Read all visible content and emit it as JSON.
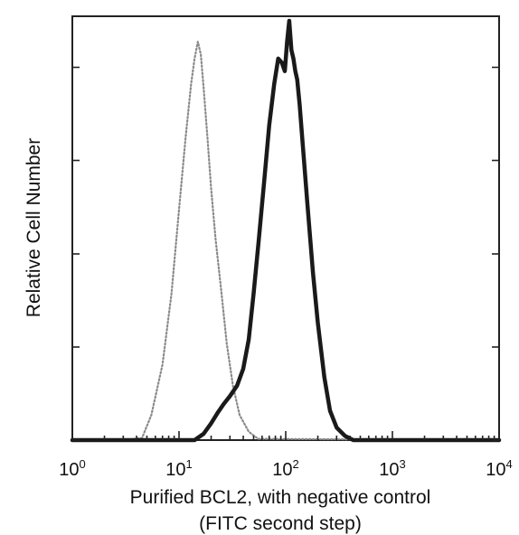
{
  "chart_data": {
    "type": "line",
    "title": "",
    "xlabel_line1": "Purified BCL2, with negative control",
    "xlabel_line2": "(FITC second step)",
    "ylabel": "Relative Cell Number",
    "x_scale": "log",
    "xlim": [
      1,
      10000
    ],
    "ylim": [
      0,
      100
    ],
    "x_tick_labels": [
      {
        "base": "10",
        "exp": "0",
        "value": 1
      },
      {
        "base": "10",
        "exp": "1",
        "value": 10
      },
      {
        "base": "10",
        "exp": "2",
        "value": 100
      },
      {
        "base": "10",
        "exp": "3",
        "value": 1000
      },
      {
        "base": "10",
        "exp": "4",
        "value": 10000
      }
    ],
    "y_ticks": [
      0,
      22.2,
      44.4,
      66.7,
      88.9
    ],
    "grid": false,
    "legend": "none",
    "series": [
      {
        "style": "dotted",
        "color": "#8a8a8a",
        "x": [
          1,
          3,
          4.5,
          5.5,
          7,
          8.5,
          10,
          11.5,
          13,
          14,
          15,
          16,
          17,
          18.5,
          20,
          22,
          25,
          28,
          32,
          37,
          45,
          55,
          10000
        ],
        "y": [
          0,
          0,
          0.5,
          6,
          18,
          35,
          55,
          72,
          85,
          91,
          95,
          92,
          84,
          72,
          60,
          48,
          35,
          23,
          13,
          6,
          2,
          0.3,
          0
        ]
      },
      {
        "style": "solid",
        "color": "#1a1a1a",
        "x": [
          1,
          14,
          17,
          20,
          23,
          26,
          30,
          35,
          40,
          45,
          50,
          56,
          63,
          70,
          78,
          85,
          92,
          98,
          103,
          108,
          113,
          118,
          123,
          128,
          135,
          145,
          160,
          180,
          200,
          230,
          260,
          300,
          360,
          430,
          10000
        ],
        "y": [
          0,
          0,
          1.5,
          4,
          6.5,
          8.5,
          10.5,
          13,
          17,
          24,
          35,
          48,
          62,
          75,
          85,
          91,
          90,
          88,
          95,
          100,
          93,
          91,
          88,
          86,
          80,
          70,
          56,
          40,
          28,
          15,
          7,
          3,
          1,
          0,
          0
        ]
      }
    ]
  }
}
